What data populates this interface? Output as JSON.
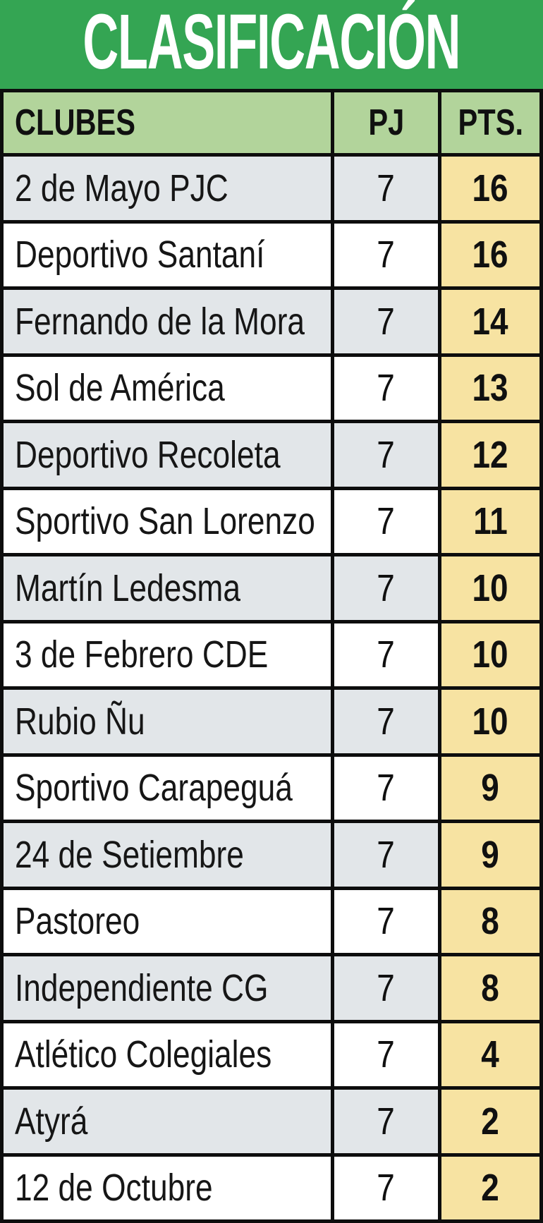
{
  "title": "CLASIFICACIÓN",
  "colors": {
    "banner_green": "#34a553",
    "header_green": "#b2d49b",
    "row_gray": "#e2e6e9",
    "row_white": "#ffffff",
    "pts_yellow": "#f7e3a2",
    "border_black": "#0d0d0d"
  },
  "chart_data": {
    "type": "table",
    "title": "CLASIFICACIÓN",
    "columns": [
      "CLUBES",
      "PJ",
      "PTS."
    ],
    "rows": [
      {
        "club": "2 de Mayo PJC",
        "pj": "7",
        "pts": "16"
      },
      {
        "club": "Deportivo Santaní",
        "pj": "7",
        "pts": "16"
      },
      {
        "club": "Fernando de la Mora",
        "pj": "7",
        "pts": "14"
      },
      {
        "club": "Sol de América",
        "pj": "7",
        "pts": "13"
      },
      {
        "club": "Deportivo Recoleta",
        "pj": "7",
        "pts": "12"
      },
      {
        "club": "Sportivo San Lorenzo",
        "pj": "7",
        "pts": "11"
      },
      {
        "club": "Martín Ledesma",
        "pj": "7",
        "pts": "10"
      },
      {
        "club": "3 de Febrero CDE",
        "pj": "7",
        "pts": "10"
      },
      {
        "club": "Rubio Ñu",
        "pj": "7",
        "pts": "10"
      },
      {
        "club": "Sportivo Carapeguá",
        "pj": "7",
        "pts": "9"
      },
      {
        "club": "24 de Setiembre",
        "pj": "7",
        "pts": "9"
      },
      {
        "club": "Pastoreo",
        "pj": "7",
        "pts": "8"
      },
      {
        "club": "Independiente CG",
        "pj": "7",
        "pts": "8"
      },
      {
        "club": "Atlético Colegiales",
        "pj": "7",
        "pts": "4"
      },
      {
        "club": "Atyrá",
        "pj": "7",
        "pts": "2"
      },
      {
        "club": "12 de Octubre",
        "pj": "7",
        "pts": "2"
      }
    ]
  }
}
